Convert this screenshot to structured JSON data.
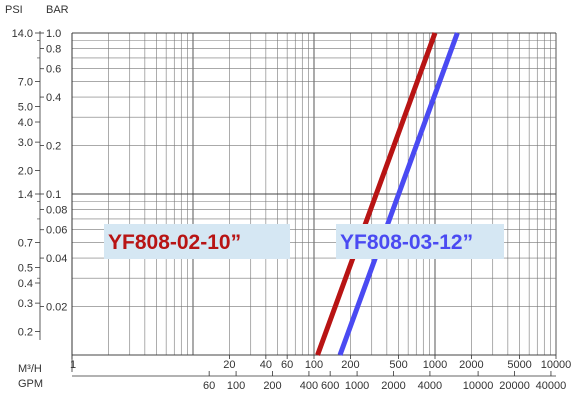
{
  "chart_data": {
    "type": "line",
    "x_scale": "log",
    "y_scale": "log",
    "grid": true,
    "legend_placement": "inline labels",
    "axes": {
      "psi": {
        "title": "PSI",
        "ticks": [
          {
            "label": "14.0",
            "bar": 1.0
          },
          {
            "label": "7.0",
            "bar": 0.5
          },
          {
            "label": "5.0",
            "bar": 0.35
          },
          {
            "label": "4.0",
            "bar": 0.28
          },
          {
            "label": "3.0",
            "bar": 0.21
          },
          {
            "label": "2.0",
            "bar": 0.14
          },
          {
            "label": "1.4",
            "bar": 0.1
          },
          {
            "label": "0.7",
            "bar": 0.05
          },
          {
            "label": "0.5",
            "bar": 0.035
          },
          {
            "label": "0.4",
            "bar": 0.028
          },
          {
            "label": "0.3",
            "bar": 0.021
          },
          {
            "label": "0.2",
            "bar": 0.014
          }
        ]
      },
      "bar": {
        "title": "BAR",
        "ticks": [
          "1.0",
          "0.8",
          "0.6",
          "0.4",
          "0.2",
          "0.1",
          "0.08",
          "0.06",
          "0.04",
          "0.02"
        ],
        "range": [
          0.01,
          1.0
        ]
      },
      "m3h": {
        "title": "M³/H",
        "ticks": [
          "1",
          "20",
          "40",
          "60",
          "100",
          "200",
          "500",
          "1000",
          "2000",
          "5000",
          "10000"
        ],
        "range": [
          1,
          10000
        ]
      },
      "gpm": {
        "title": "GPM",
        "ticks": [
          {
            "label": "60",
            "m3h": 13.6
          },
          {
            "label": "100",
            "m3h": 22.7
          },
          {
            "label": "200",
            "m3h": 45.4
          },
          {
            "label": "400",
            "m3h": 90.8
          },
          {
            "label": "600",
            "m3h": 136
          },
          {
            "label": "1000",
            "m3h": 227
          },
          {
            "label": "2000",
            "m3h": 454
          },
          {
            "label": "4000",
            "m3h": 908
          },
          {
            "label": "10000",
            "m3h": 2271
          },
          {
            "label": "20000",
            "m3h": 4542
          },
          {
            "label": "40000",
            "m3h": 9084
          }
        ]
      }
    },
    "series": [
      {
        "name": "YF808-02-10”",
        "color": "#b81414",
        "x": [
          107,
          1000
        ],
        "y": [
          0.01,
          1.0
        ]
      },
      {
        "name": "YF808-03-12”",
        "color": "#4a4af2",
        "x": [
          164,
          1530
        ],
        "y": [
          0.01,
          1.0
        ]
      }
    ],
    "label_background": "#d5e7f3"
  }
}
